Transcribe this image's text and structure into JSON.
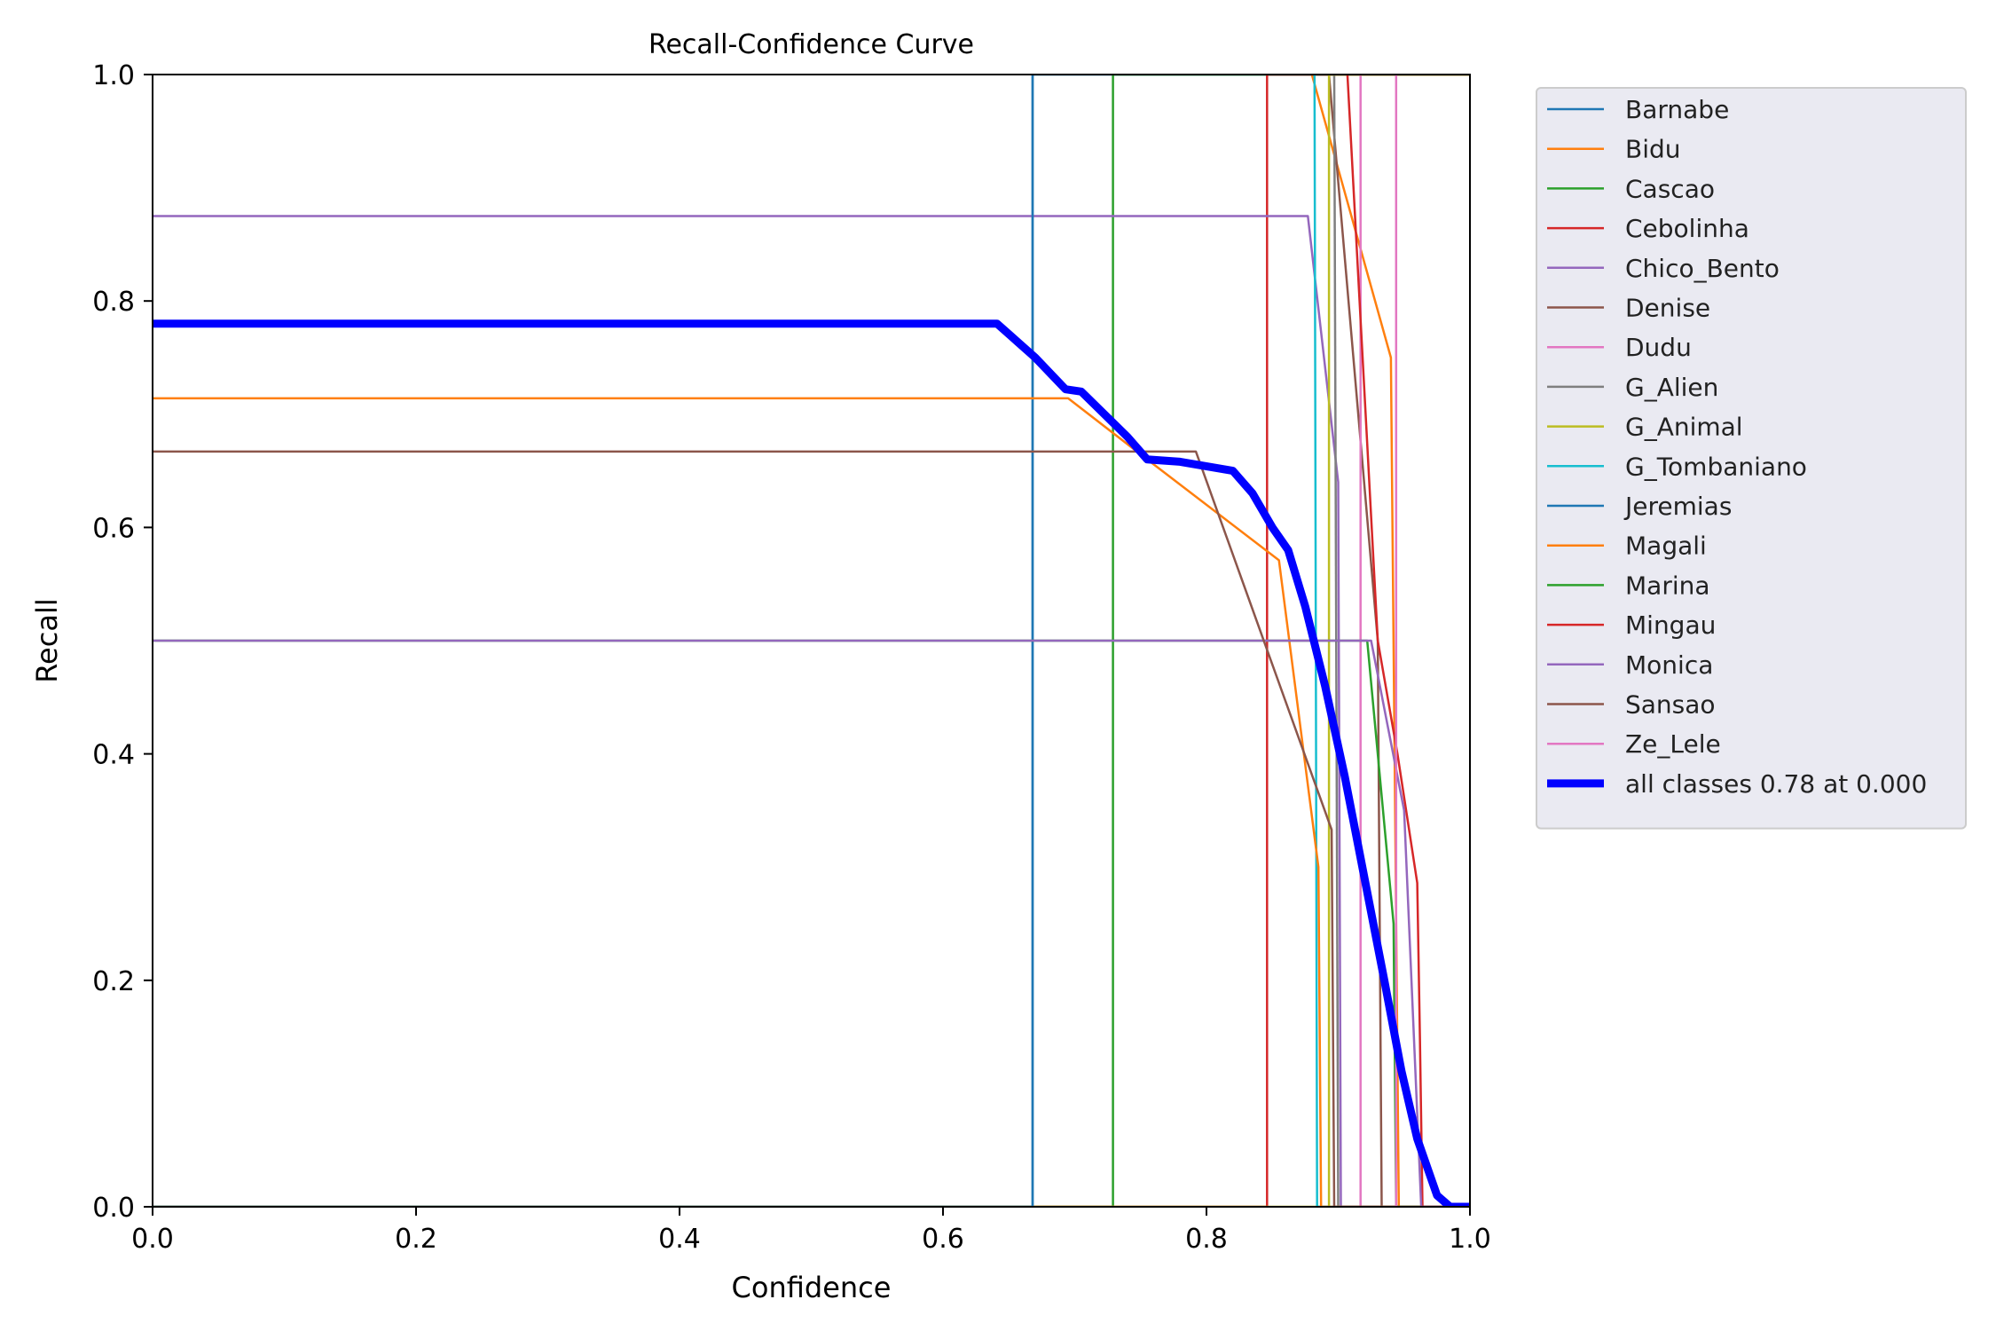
{
  "chart_data": {
    "type": "line",
    "title": "Recall-Confidence Curve",
    "xlabel": "Confidence",
    "ylabel": "Recall",
    "xlim": [
      0,
      1
    ],
    "ylim": [
      0,
      1
    ],
    "x_ticks": [
      "0.0",
      "0.2",
      "0.4",
      "0.6",
      "0.8",
      "1.0"
    ],
    "y_ticks": [
      "0.0",
      "0.2",
      "0.4",
      "0.6",
      "0.8",
      "1.0"
    ],
    "grid": false,
    "legend_position": "outside-right",
    "series": [
      {
        "name": "Barnabe",
        "color": "#1f77b4",
        "points": [
          [
            0,
            0
          ],
          [
            0.668,
            0
          ],
          [
            0.668,
            1.0
          ],
          [
            1.0,
            1.0
          ]
        ]
      },
      {
        "name": "Bidu",
        "color": "#ff7f0e",
        "points": [
          [
            0.88,
            1.0
          ],
          [
            0.94,
            0.75
          ],
          [
            0.946,
            0.0
          ],
          [
            1.0,
            0.0
          ]
        ]
      },
      {
        "name": "Cascao",
        "color": "#2ca02c",
        "points": [
          [
            0,
            0
          ],
          [
            0.729,
            0
          ],
          [
            0.729,
            1.0
          ],
          [
            1.0,
            1.0
          ]
        ]
      },
      {
        "name": "Cebolinha",
        "color": "#d62728",
        "points": [
          [
            0,
            0
          ],
          [
            0.846,
            0
          ],
          [
            0.846,
            1.0
          ],
          [
            1.0,
            1.0
          ]
        ]
      },
      {
        "name": "Chico_Bento",
        "color": "#9467bd",
        "points": [
          [
            0,
            0.875
          ],
          [
            0.877,
            0.875
          ],
          [
            0.9,
            0.64
          ],
          [
            0.902,
            0.0
          ],
          [
            1.0,
            0.0
          ]
        ]
      },
      {
        "name": "Denise",
        "color": "#8c564b",
        "points": [
          [
            0.893,
            1.0
          ],
          [
            0.93,
            0.5
          ],
          [
            0.933,
            0.0
          ],
          [
            1.0,
            0.0
          ]
        ]
      },
      {
        "name": "Dudu",
        "color": "#e377c2",
        "points": [
          [
            0.917,
            0
          ],
          [
            0.917,
            1.0
          ]
        ]
      },
      {
        "name": "G_Alien",
        "color": "#7f7f7f",
        "points": [
          [
            0.897,
            1.0
          ],
          [
            0.9,
            0.0
          ]
        ]
      },
      {
        "name": "G_Animal",
        "color": "#bcbd22",
        "points": [
          [
            0,
            0
          ],
          [
            0.893,
            0
          ],
          [
            0.893,
            1.0
          ],
          [
            1.0,
            1.0
          ]
        ]
      },
      {
        "name": "G_Tombaniano",
        "color": "#17becf",
        "points": [
          [
            0.882,
            1.0
          ],
          [
            0.884,
            0.0
          ],
          [
            1.0,
            0.0
          ]
        ]
      },
      {
        "name": "Jeremias",
        "color": "#1f77b4",
        "points": [
          [
            0,
            0
          ],
          [
            0.668,
            0
          ],
          [
            0.668,
            1.0
          ]
        ]
      },
      {
        "name": "Magali",
        "color": "#ff7f0e",
        "points": [
          [
            0,
            0.714
          ],
          [
            0.695,
            0.714
          ],
          [
            0.755,
            0.66
          ],
          [
            0.855,
            0.571
          ],
          [
            0.885,
            0.3
          ],
          [
            0.887,
            0.0
          ],
          [
            1.0,
            0.0
          ]
        ]
      },
      {
        "name": "Marina",
        "color": "#2ca02c",
        "points": [
          [
            0,
            0.5
          ],
          [
            0.922,
            0.5
          ],
          [
            0.942,
            0.25
          ],
          [
            0.944,
            0.0
          ],
          [
            1.0,
            0.0
          ]
        ]
      },
      {
        "name": "Mingau",
        "color": "#d62728",
        "points": [
          [
            0.907,
            1.0
          ],
          [
            0.93,
            0.5
          ],
          [
            0.945,
            0.4
          ],
          [
            0.96,
            0.286
          ],
          [
            0.962,
            0.15
          ],
          [
            0.964,
            0.0
          ],
          [
            1.0,
            0.0
          ]
        ]
      },
      {
        "name": "Monica",
        "color": "#9467bd",
        "points": [
          [
            0,
            0.5
          ],
          [
            0.925,
            0.5
          ],
          [
            0.95,
            0.35
          ],
          [
            0.963,
            0.0
          ],
          [
            1.0,
            0.0
          ]
        ]
      },
      {
        "name": "Sansao",
        "color": "#8c564b",
        "points": [
          [
            0,
            0.667
          ],
          [
            0.792,
            0.667
          ],
          [
            0.895,
            0.333
          ],
          [
            0.897,
            0.0
          ],
          [
            1.0,
            0.0
          ]
        ]
      },
      {
        "name": "Ze_Lele",
        "color": "#e377c2",
        "points": [
          [
            0.944,
            0
          ],
          [
            0.944,
            1.0
          ]
        ]
      },
      {
        "name": "all classes 0.78 at 0.000",
        "color": "#0000ff",
        "bold": true,
        "points": [
          [
            0,
            0.78
          ],
          [
            0.641,
            0.78
          ],
          [
            0.67,
            0.75
          ],
          [
            0.693,
            0.722
          ],
          [
            0.705,
            0.72
          ],
          [
            0.74,
            0.68
          ],
          [
            0.755,
            0.66
          ],
          [
            0.78,
            0.658
          ],
          [
            0.82,
            0.65
          ],
          [
            0.835,
            0.63
          ],
          [
            0.85,
            0.6
          ],
          [
            0.862,
            0.58
          ],
          [
            0.875,
            0.53
          ],
          [
            0.89,
            0.46
          ],
          [
            0.905,
            0.38
          ],
          [
            0.92,
            0.29
          ],
          [
            0.935,
            0.2
          ],
          [
            0.948,
            0.12
          ],
          [
            0.96,
            0.06
          ],
          [
            0.975,
            0.01
          ],
          [
            0.985,
            0.0
          ],
          [
            1.0,
            0.0
          ]
        ]
      }
    ]
  }
}
